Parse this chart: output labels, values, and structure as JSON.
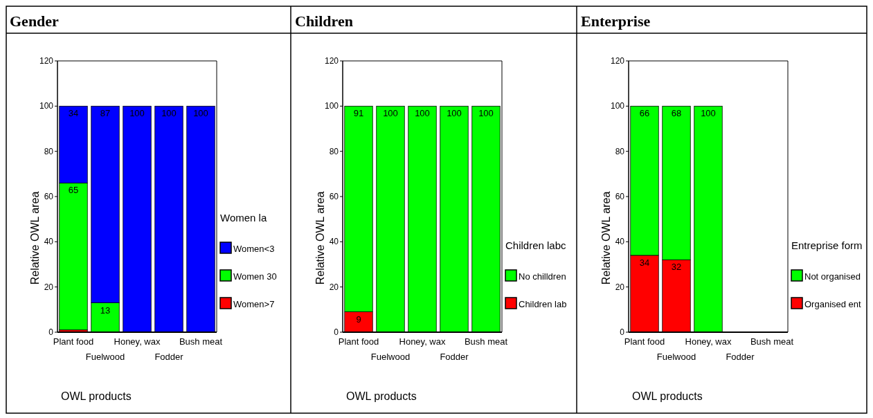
{
  "chart_data": [
    {
      "type": "bar",
      "title": "Gender",
      "xlabel": "OWL products",
      "ylabel": "Relative OWL area",
      "legend_title": "Women la",
      "categories": [
        "Plant food",
        "Fuelwood",
        "Honey, wax",
        "Fodder",
        "Bush meat"
      ],
      "stacked": true,
      "ylim": [
        0,
        120
      ],
      "yticks": [
        0,
        20,
        40,
        60,
        80,
        100,
        120
      ],
      "legend": "right",
      "series": [
        {
          "name": "Women>7",
          "color": "#ff0000",
          "values": [
            1,
            0,
            0,
            0,
            0
          ],
          "value_labels": [
            null,
            null,
            null,
            null,
            null
          ]
        },
        {
          "name": "Women 30",
          "color": "#00ff00",
          "values": [
            65,
            13,
            0,
            0,
            0
          ],
          "value_labels": [
            "65",
            "13",
            null,
            null,
            null
          ]
        },
        {
          "name": "Women<3",
          "color": "#0000ff",
          "values": [
            34,
            87,
            100,
            100,
            100
          ],
          "value_labels": [
            "34",
            "87",
            "100",
            "100",
            "100"
          ]
        }
      ]
    },
    {
      "type": "bar",
      "title": "Children",
      "xlabel": "OWL products",
      "ylabel": "Relative OWL area",
      "legend_title": "Children labc",
      "categories": [
        "Plant food",
        "Fuelwood",
        "Honey, wax",
        "Fodder",
        "Bush meat"
      ],
      "stacked": true,
      "ylim": [
        0,
        120
      ],
      "yticks": [
        0,
        20,
        40,
        60,
        80,
        100,
        120
      ],
      "legend": "right",
      "series": [
        {
          "name": "Children lab",
          "color": "#ff0000",
          "values": [
            9,
            0,
            0,
            0,
            0
          ],
          "value_labels": [
            "9",
            null,
            null,
            null,
            null
          ]
        },
        {
          "name": "No chilldren",
          "color": "#00ff00",
          "values": [
            91,
            100,
            100,
            100,
            100
          ],
          "value_labels": [
            "91",
            "100",
            "100",
            "100",
            "100"
          ]
        }
      ]
    },
    {
      "type": "bar",
      "title": "Enterprise",
      "xlabel": "OWL products",
      "ylabel": "Relative OWL area",
      "legend_title": "Entreprise form",
      "categories": [
        "Plant food",
        "Fuelwood",
        "Honey, wax",
        "Fodder",
        "Bush meat"
      ],
      "stacked": true,
      "ylim": [
        0,
        120
      ],
      "yticks": [
        0,
        20,
        40,
        60,
        80,
        100,
        120
      ],
      "legend": "right",
      "series": [
        {
          "name": "Organised ent",
          "color": "#ff0000",
          "values": [
            34,
            32,
            0,
            0,
            0
          ],
          "value_labels": [
            "34",
            "32",
            null,
            null,
            null
          ]
        },
        {
          "name": "Not organised",
          "color": "#00ff00",
          "values": [
            66,
            68,
            100,
            0,
            0
          ],
          "value_labels": [
            "66",
            "68",
            "100",
            null,
            null
          ]
        }
      ]
    }
  ]
}
